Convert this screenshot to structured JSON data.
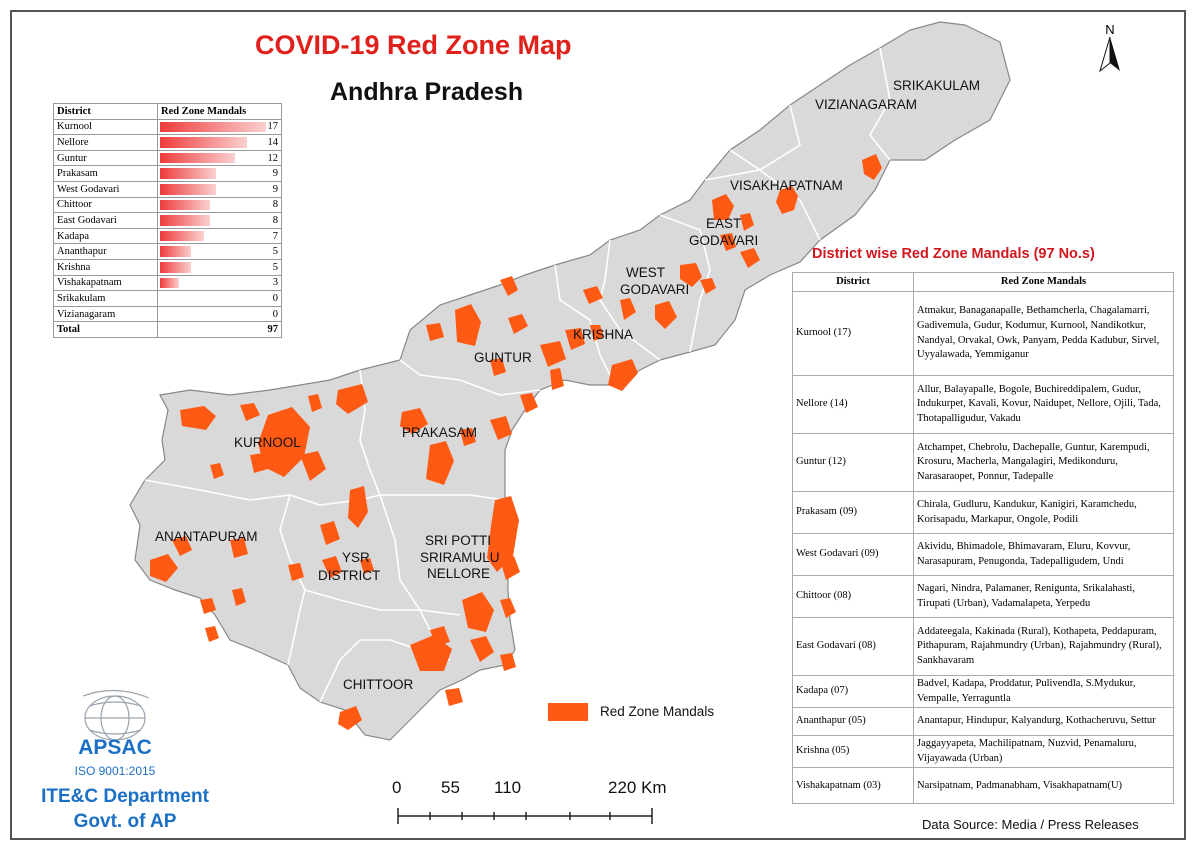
{
  "title": "COVID-19 Red Zone Map",
  "subtitle": "Andhra Pradesh",
  "north_label": "N",
  "colors": {
    "red_zone": "#ff5a14",
    "state_fill": "#d9d9d9",
    "title_red": "#e0201a",
    "org_blue": "#1b6fc4"
  },
  "district_labels": [
    "SRIKAKULAM",
    "VIZIANAGARAM",
    "VISAKHAPATNAM",
    "EAST",
    "GODAVARI",
    "WEST",
    "GODAVARI",
    "KRISHNA",
    "GUNTUR",
    "PRAKASAM",
    "KURNOOL",
    "ANANTAPURAM",
    "YSR",
    "DISTRICT",
    "SRI POTTI",
    "SRIRAMULU",
    "NELLORE",
    "CHITTOOR"
  ],
  "summary_table": {
    "headers": [
      "District",
      "Red Zone Mandals"
    ],
    "rows": [
      {
        "district": "Kurnool",
        "count": 17
      },
      {
        "district": "Nellore",
        "count": 14
      },
      {
        "district": "Guntur",
        "count": 12
      },
      {
        "district": "Prakasam",
        "count": 9
      },
      {
        "district": "West Godavari",
        "count": 9
      },
      {
        "district": "Chittoor",
        "count": 8
      },
      {
        "district": "East Godavari",
        "count": 8
      },
      {
        "district": "Kadapa",
        "count": 7
      },
      {
        "district": "Ananthapur",
        "count": 5
      },
      {
        "district": "Krishna",
        "count": 5
      },
      {
        "district": "Vishakapatnam",
        "count": 3
      },
      {
        "district": "Srikakulam",
        "count": 0
      },
      {
        "district": "Vizianagaram",
        "count": 0
      }
    ],
    "total_label": "Total",
    "total": 97
  },
  "mandal_table": {
    "title": "District wise Red Zone Mandals (97 No.s)",
    "headers": [
      "District",
      "Red Zone Mandals"
    ],
    "rows": [
      {
        "district": "Kurnool (17)",
        "mandals": "Atmakur, Banaganapalle, Bethamcherla, Chagalamarri, Gadivemula, Gudur, Kodumur, Kurnool, Nandikotkur, Nandyal, Orvakal, Owk, Panyam, Pedda Kadubur, Sirvel, Uyyalawada, Yemmiganur"
      },
      {
        "district": "Nellore (14)",
        "mandals": "Allur, Balayapalle, Bogole, Buchireddipalem, Gudur, Indukurpet, Kavali, Kovur, Naidupet, Nellore, Ojili, Tada, Thotapalligudur, Vakadu"
      },
      {
        "district": "Guntur (12)",
        "mandals": "Atchampet, Chebrolu, Dachepalle, Guntur, Karempudi, Krosuru, Macherla, Mangalagiri, Medikonduru, Narasaraopet, Ponnur, Tadepalle"
      },
      {
        "district": "Prakasam (09)",
        "mandals": "Chirala, Gudluru, Kandukur, Kanigiri, Karamchedu, Korisapadu, Markapur, Ongole, Podili"
      },
      {
        "district": "West Godavari (09)",
        "mandals": "Akividu, Bhimadole, Bhimavaram, Eluru, Kovvur, Narasapuram, Penugonda, Tadepalligudem, Undi"
      },
      {
        "district": "Chittoor (08)",
        "mandals": "Nagari,  Nindra, Palamaner, Renigunta, Srikalahasti, Tirupati (Urban), Vadamalapeta, Yerpedu"
      },
      {
        "district": "East Godavari (08)",
        "mandals": "Addateegala, Kakinada (Rural), Kothapeta, Peddapuram, Pithapuram, Rajahmundry (Urban), Rajahmundry (Rural), Sankhavaram"
      },
      {
        "district": "Kadapa (07)",
        "mandals": "Badvel, Kadapa, Proddatur, Pulivendla, S.Mydukur, Vempalle, Yerraguntla"
      },
      {
        "district": "Ananthapur (05)",
        "mandals": "Anantapur, Hindupur, Kalyandurg, Kothacheruvu, Settur"
      },
      {
        "district": "Krishna (05)",
        "mandals": "Jaggayyapeta, Machilipatnam, Nuzvid, Penamaluru, Vijayawada (Urban)"
      },
      {
        "district": "Vishakapatnam (03)",
        "mandals": "Narsipatnam, Padmanabham, Visakhapatnam(U)"
      }
    ]
  },
  "legend": {
    "label": "Red Zone Mandals"
  },
  "scale_bar": {
    "labels": [
      "0",
      "55",
      "110",
      "220 Km"
    ]
  },
  "org": {
    "name": "APSAC",
    "iso": "ISO 9001:2015",
    "dept_line1": "ITE&C Department",
    "dept_line2": "Govt. of AP"
  },
  "source_note": "Data Source: Media / Press Releases"
}
